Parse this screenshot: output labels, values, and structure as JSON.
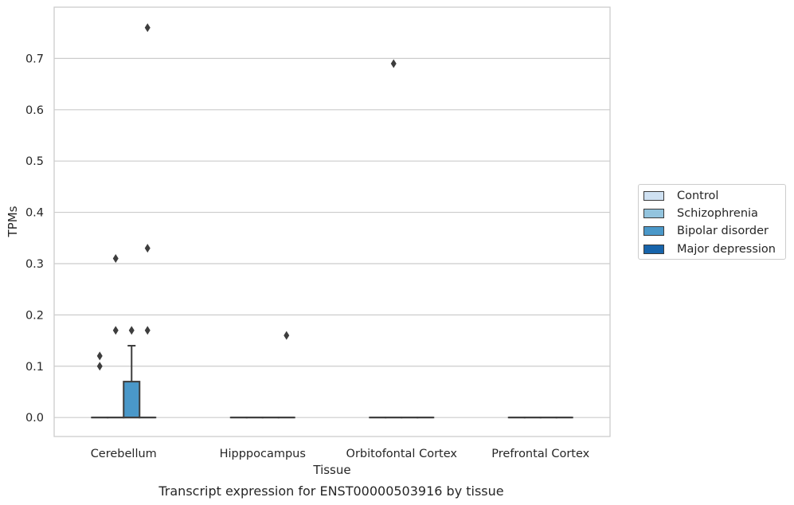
{
  "chart_data": {
    "type": "box",
    "title": "",
    "xlabel": "Tissue",
    "ylabel": "TPMs",
    "caption": "Transcript expression for ENST00000503916 by tissue",
    "ylim": [
      -0.037,
      0.8
    ],
    "yticks": [
      0.0,
      0.1,
      0.2,
      0.3,
      0.4,
      0.5,
      0.6,
      0.7
    ],
    "ytick_labels": [
      "0.0",
      "0.1",
      "0.2",
      "0.3",
      "0.4",
      "0.5",
      "0.6",
      "0.7"
    ],
    "grid": "horizontal",
    "categories": [
      "Cerebellum",
      "Hipppocampus",
      "Orbitofontal Cortex",
      "Prefrontal Cortex"
    ],
    "legend_placement": "center-right outside",
    "series": [
      {
        "name": "Control",
        "color": "#cfe1f2",
        "boxes": [
          {
            "q1": 0.0,
            "median": 0.0,
            "q3": 0.0,
            "whisker_low": 0.0,
            "whisker_high": 0.0,
            "outliers": [
              0.1,
              0.12
            ]
          },
          {
            "q1": 0.0,
            "median": 0.0,
            "q3": 0.0,
            "whisker_low": 0.0,
            "whisker_high": 0.0,
            "outliers": []
          },
          {
            "q1": 0.0,
            "median": 0.0,
            "q3": 0.0,
            "whisker_low": 0.0,
            "whisker_high": 0.0,
            "outliers": []
          },
          {
            "q1": 0.0,
            "median": 0.0,
            "q3": 0.0,
            "whisker_low": 0.0,
            "whisker_high": 0.0,
            "outliers": []
          }
        ]
      },
      {
        "name": "Schizophrenia",
        "color": "#93c4de",
        "boxes": [
          {
            "q1": 0.0,
            "median": 0.0,
            "q3": 0.0,
            "whisker_low": 0.0,
            "whisker_high": 0.0,
            "outliers": [
              0.17,
              0.31
            ]
          },
          {
            "q1": 0.0,
            "median": 0.0,
            "q3": 0.0,
            "whisker_low": 0.0,
            "whisker_high": 0.0,
            "outliers": []
          },
          {
            "q1": 0.0,
            "median": 0.0,
            "q3": 0.0,
            "whisker_low": 0.0,
            "whisker_high": 0.0,
            "outliers": [
              0.69
            ]
          },
          {
            "q1": 0.0,
            "median": 0.0,
            "q3": 0.0,
            "whisker_low": 0.0,
            "whisker_high": 0.0,
            "outliers": []
          }
        ]
      },
      {
        "name": "Bipolar disorder",
        "color": "#4a98c9",
        "boxes": [
          {
            "q1": 0.0,
            "median": 0.0,
            "q3": 0.07,
            "whisker_low": 0.0,
            "whisker_high": 0.14,
            "outliers": [
              0.17
            ]
          },
          {
            "q1": 0.0,
            "median": 0.0,
            "q3": 0.0,
            "whisker_low": 0.0,
            "whisker_high": 0.0,
            "outliers": []
          },
          {
            "q1": 0.0,
            "median": 0.0,
            "q3": 0.0,
            "whisker_low": 0.0,
            "whisker_high": 0.0,
            "outliers": []
          },
          {
            "q1": 0.0,
            "median": 0.0,
            "q3": 0.0,
            "whisker_low": 0.0,
            "whisker_high": 0.0,
            "outliers": []
          }
        ]
      },
      {
        "name": "Major depression",
        "color": "#1764ab",
        "boxes": [
          {
            "q1": 0.0,
            "median": 0.0,
            "q3": 0.0,
            "whisker_low": 0.0,
            "whisker_high": 0.0,
            "outliers": [
              0.17,
              0.33,
              0.76
            ]
          },
          {
            "q1": 0.0,
            "median": 0.0,
            "q3": 0.0,
            "whisker_low": 0.0,
            "whisker_high": 0.0,
            "outliers": [
              0.16
            ]
          },
          {
            "q1": 0.0,
            "median": 0.0,
            "q3": 0.0,
            "whisker_low": 0.0,
            "whisker_high": 0.0,
            "outliers": []
          },
          {
            "q1": 0.0,
            "median": 0.0,
            "q3": 0.0,
            "whisker_low": 0.0,
            "whisker_high": 0.0,
            "outliers": []
          }
        ]
      }
    ]
  }
}
